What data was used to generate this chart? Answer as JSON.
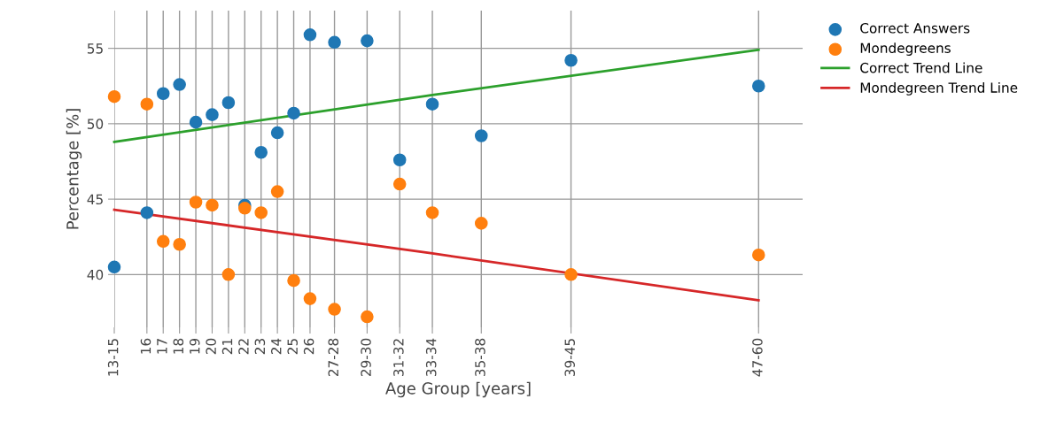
{
  "chart_data": {
    "type": "scatter",
    "xlabel": "Age Group [years]",
    "ylabel": "Percentage [%]",
    "xlim": [
      14,
      56.2
    ],
    "ylim": [
      36.5,
      57.5
    ],
    "xticks": [
      {
        "value": 14,
        "label": "13-15"
      },
      {
        "value": 16,
        "label": "16"
      },
      {
        "value": 17,
        "label": "17"
      },
      {
        "value": 18,
        "label": "18"
      },
      {
        "value": 19,
        "label": "19"
      },
      {
        "value": 20,
        "label": "20"
      },
      {
        "value": 21,
        "label": "21"
      },
      {
        "value": 22,
        "label": "22"
      },
      {
        "value": 23,
        "label": "23"
      },
      {
        "value": 24,
        "label": "24"
      },
      {
        "value": 25,
        "label": "25"
      },
      {
        "value": 26,
        "label": "26"
      },
      {
        "value": 27.5,
        "label": "27-28"
      },
      {
        "value": 29.5,
        "label": "29-30"
      },
      {
        "value": 31.5,
        "label": "31-32"
      },
      {
        "value": 33.5,
        "label": "33-34"
      },
      {
        "value": 36.5,
        "label": "35-38"
      },
      {
        "value": 42,
        "label": "39-45"
      },
      {
        "value": 53.5,
        "label": "47-60"
      }
    ],
    "yticks": [
      40,
      45,
      50,
      55
    ],
    "grid": true,
    "legend": "top right",
    "marker": "circle",
    "x": [
      14,
      16,
      17,
      18,
      19,
      20,
      21,
      22,
      23,
      24,
      25,
      26,
      27.5,
      29.5,
      31.5,
      33.5,
      36.5,
      42,
      53.5
    ],
    "series": [
      {
        "name": "Correct Answers",
        "color": "#1f77b4",
        "values": [
          40.5,
          44.1,
          52.0,
          52.6,
          50.1,
          50.6,
          51.4,
          44.6,
          48.1,
          49.4,
          50.7,
          55.9,
          55.4,
          55.5,
          47.6,
          51.3,
          49.2,
          54.2,
          52.5
        ]
      },
      {
        "name": "Mondegreens",
        "color": "#ff7f0e",
        "values": [
          51.8,
          51.3,
          42.2,
          42.0,
          44.8,
          44.6,
          40.0,
          44.4,
          44.1,
          45.5,
          39.6,
          38.4,
          37.7,
          37.2,
          46.0,
          44.1,
          43.4,
          40.0,
          41.3
        ]
      },
      {
        "name": "Correct Trend Line",
        "type": "line",
        "marker": "none",
        "color": "#2ca02c",
        "x": [
          14,
          33.5,
          53.5
        ],
        "values": [
          48.8,
          51.9,
          54.9
        ]
      },
      {
        "name": "Mondegreen Trend Line",
        "type": "line",
        "marker": "none",
        "color": "#d62728",
        "x": [
          14,
          33.5,
          53.5
        ],
        "values": [
          44.3,
          41.4,
          38.3
        ]
      }
    ]
  }
}
